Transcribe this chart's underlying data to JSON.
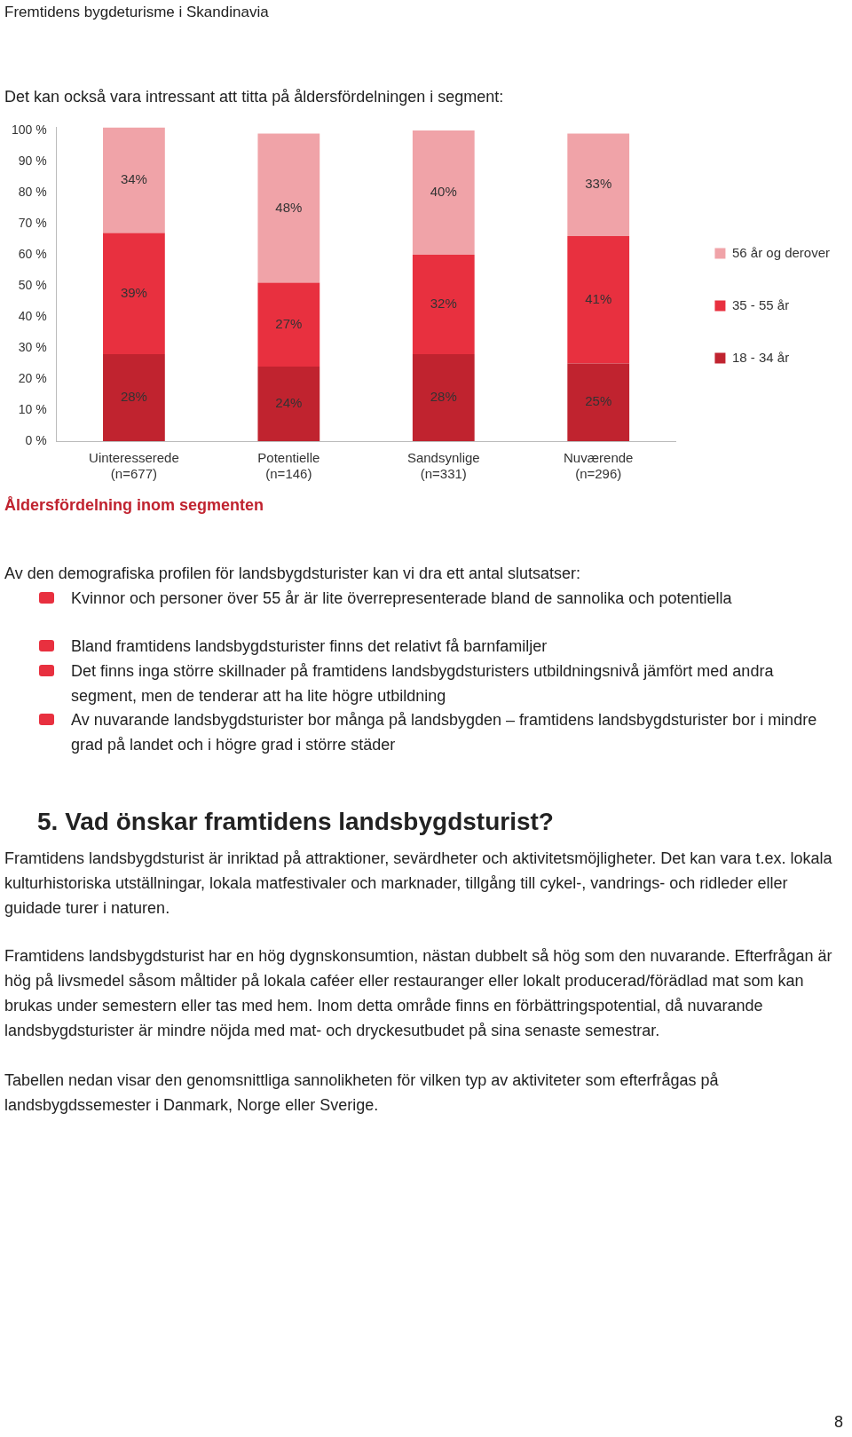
{
  "chart_data": {
    "type": "bar",
    "stacked": true,
    "legend": "right",
    "grid": false,
    "categories": [
      "Uinteresserede\n(n=677)",
      "Potentielle\n(n=146)",
      "Sandsynlige\n(n=331)",
      "Nuværende\n(n=296)"
    ],
    "series": [
      {
        "name": "18 - 34 år",
        "color": "#c0232f",
        "values": [
          28,
          24,
          28,
          25
        ],
        "value_labels": [
          "28%",
          "24%",
          "28%",
          "25%"
        ]
      },
      {
        "name": "35 - 55 år",
        "color": "#e8303f",
        "values": [
          39,
          27,
          32,
          41
        ],
        "value_labels": [
          "39%",
          "27%",
          "32%",
          "41%"
        ]
      },
      {
        "name": "56 år og derover",
        "color": "#f0a3a8",
        "values": [
          34,
          48,
          40,
          33
        ],
        "value_labels": [
          "34%",
          "48%",
          "40%",
          "33%"
        ]
      }
    ],
    "ylim": [
      0,
      101
    ],
    "yticks": [
      {
        "value": 0,
        "label": "0 %"
      },
      {
        "value": 10,
        "label": "10 %"
      },
      {
        "value": 20,
        "label": "20 %"
      },
      {
        "value": 30,
        "label": "30 %"
      },
      {
        "value": 40,
        "label": "40 %"
      },
      {
        "value": 50,
        "label": "50 %"
      },
      {
        "value": 60,
        "label": "60 %"
      },
      {
        "value": 70,
        "label": "70 %"
      },
      {
        "value": 80,
        "label": "80 %"
      },
      {
        "value": 90,
        "label": "90 %"
      },
      {
        "value": 100,
        "label": "100 %"
      }
    ],
    "annotations": [
      "Fremtidens bygdeturisme i Skandinavia",
      "Det kan också vara intressant att titta på åldersfördelningen i segment:",
      "Åldersfördelning inom segmenten",
      "Av den demografiska profilen för landsbygdsturister kan vi dra ett antal slutsatser:",
      "Kvinnor och personer över 55 år är lite överrepresenterade bland de sannolika och potentiella",
      "Bland framtidens landsbygdsturister finns det relativt få barnfamiljer",
      "Det finns inga större skillnader på framtidens landsbygdsturisters utbildningsnivå jämfört med andra segment, men de tenderar att ha lite högre utbildning",
      "Av nuvarande landsbygdsturister bor många på landsbygden – framtidens landsbygdsturister bor i mindre grad på landet och i högre grad i större städer",
      "5. Vad önskar framtidens landsbygdsturist?",
      "Framtidens landsbygdsturist är inriktad på attraktioner, sevärdheter och aktivitetsmöjligheter. Det kan vara t.ex. lokala kulturhistoriska utställningar, lokala matfestivaler och marknader, tillgång till cykel-, vandrings- och ridleder eller guidade turer i naturen.",
      "Framtidens landsbygdsturist har en hög dygnskonsumtion, nästan dubbelt så hög som den nuvarande. Efterfrågan är hög på livsmedel såsom måltider på lokala caféer eller restauranger eller lokalt producerad/förädlad mat som kan brukas under semestern eller tas med hem. Inom detta område finns en förbättringspotential, då nuvarande landsbygdsturister är mindre nöjda med mat- och dryckesutbudet på sina senaste semestrar.",
      "Tabellen nedan visar den genomsnittliga sannolikheten för vilken typ av aktiviteter som efterfrågas på landsbygdssemester i Danmark, Norge eller Sverige.",
      "8"
    ]
  }
}
